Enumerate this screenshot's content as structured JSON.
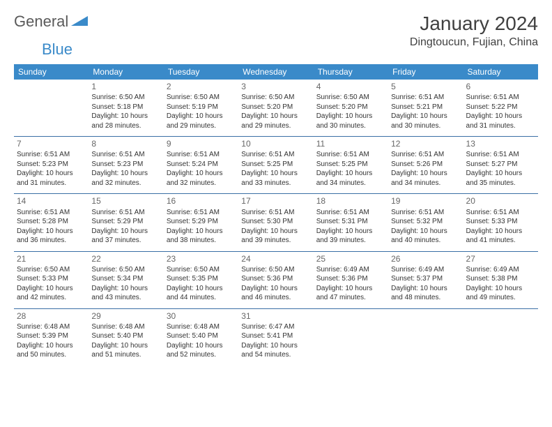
{
  "logo": {
    "part1": "General",
    "part2": "Blue",
    "color": "#3a8ac9"
  },
  "title": "January 2024",
  "location": "Dingtoucun, Fujian, China",
  "header_bg": "#3a8ac9",
  "border_color": "#3a6fa5",
  "days": [
    "Sunday",
    "Monday",
    "Tuesday",
    "Wednesday",
    "Thursday",
    "Friday",
    "Saturday"
  ],
  "cells": [
    [
      null,
      {
        "n": "1",
        "sr": "6:50 AM",
        "ss": "5:18 PM",
        "dl": "10 hours and 28 minutes."
      },
      {
        "n": "2",
        "sr": "6:50 AM",
        "ss": "5:19 PM",
        "dl": "10 hours and 29 minutes."
      },
      {
        "n": "3",
        "sr": "6:50 AM",
        "ss": "5:20 PM",
        "dl": "10 hours and 29 minutes."
      },
      {
        "n": "4",
        "sr": "6:50 AM",
        "ss": "5:20 PM",
        "dl": "10 hours and 30 minutes."
      },
      {
        "n": "5",
        "sr": "6:51 AM",
        "ss": "5:21 PM",
        "dl": "10 hours and 30 minutes."
      },
      {
        "n": "6",
        "sr": "6:51 AM",
        "ss": "5:22 PM",
        "dl": "10 hours and 31 minutes."
      }
    ],
    [
      {
        "n": "7",
        "sr": "6:51 AM",
        "ss": "5:23 PM",
        "dl": "10 hours and 31 minutes."
      },
      {
        "n": "8",
        "sr": "6:51 AM",
        "ss": "5:23 PM",
        "dl": "10 hours and 32 minutes."
      },
      {
        "n": "9",
        "sr": "6:51 AM",
        "ss": "5:24 PM",
        "dl": "10 hours and 32 minutes."
      },
      {
        "n": "10",
        "sr": "6:51 AM",
        "ss": "5:25 PM",
        "dl": "10 hours and 33 minutes."
      },
      {
        "n": "11",
        "sr": "6:51 AM",
        "ss": "5:25 PM",
        "dl": "10 hours and 34 minutes."
      },
      {
        "n": "12",
        "sr": "6:51 AM",
        "ss": "5:26 PM",
        "dl": "10 hours and 34 minutes."
      },
      {
        "n": "13",
        "sr": "6:51 AM",
        "ss": "5:27 PM",
        "dl": "10 hours and 35 minutes."
      }
    ],
    [
      {
        "n": "14",
        "sr": "6:51 AM",
        "ss": "5:28 PM",
        "dl": "10 hours and 36 minutes."
      },
      {
        "n": "15",
        "sr": "6:51 AM",
        "ss": "5:29 PM",
        "dl": "10 hours and 37 minutes."
      },
      {
        "n": "16",
        "sr": "6:51 AM",
        "ss": "5:29 PM",
        "dl": "10 hours and 38 minutes."
      },
      {
        "n": "17",
        "sr": "6:51 AM",
        "ss": "5:30 PM",
        "dl": "10 hours and 39 minutes."
      },
      {
        "n": "18",
        "sr": "6:51 AM",
        "ss": "5:31 PM",
        "dl": "10 hours and 39 minutes."
      },
      {
        "n": "19",
        "sr": "6:51 AM",
        "ss": "5:32 PM",
        "dl": "10 hours and 40 minutes."
      },
      {
        "n": "20",
        "sr": "6:51 AM",
        "ss": "5:33 PM",
        "dl": "10 hours and 41 minutes."
      }
    ],
    [
      {
        "n": "21",
        "sr": "6:50 AM",
        "ss": "5:33 PM",
        "dl": "10 hours and 42 minutes."
      },
      {
        "n": "22",
        "sr": "6:50 AM",
        "ss": "5:34 PM",
        "dl": "10 hours and 43 minutes."
      },
      {
        "n": "23",
        "sr": "6:50 AM",
        "ss": "5:35 PM",
        "dl": "10 hours and 44 minutes."
      },
      {
        "n": "24",
        "sr": "6:50 AM",
        "ss": "5:36 PM",
        "dl": "10 hours and 46 minutes."
      },
      {
        "n": "25",
        "sr": "6:49 AM",
        "ss": "5:36 PM",
        "dl": "10 hours and 47 minutes."
      },
      {
        "n": "26",
        "sr": "6:49 AM",
        "ss": "5:37 PM",
        "dl": "10 hours and 48 minutes."
      },
      {
        "n": "27",
        "sr": "6:49 AM",
        "ss": "5:38 PM",
        "dl": "10 hours and 49 minutes."
      }
    ],
    [
      {
        "n": "28",
        "sr": "6:48 AM",
        "ss": "5:39 PM",
        "dl": "10 hours and 50 minutes."
      },
      {
        "n": "29",
        "sr": "6:48 AM",
        "ss": "5:40 PM",
        "dl": "10 hours and 51 minutes."
      },
      {
        "n": "30",
        "sr": "6:48 AM",
        "ss": "5:40 PM",
        "dl": "10 hours and 52 minutes."
      },
      {
        "n": "31",
        "sr": "6:47 AM",
        "ss": "5:41 PM",
        "dl": "10 hours and 54 minutes."
      },
      null,
      null,
      null
    ]
  ],
  "labels": {
    "sunrise": "Sunrise:",
    "sunset": "Sunset:",
    "daylight": "Daylight:"
  }
}
